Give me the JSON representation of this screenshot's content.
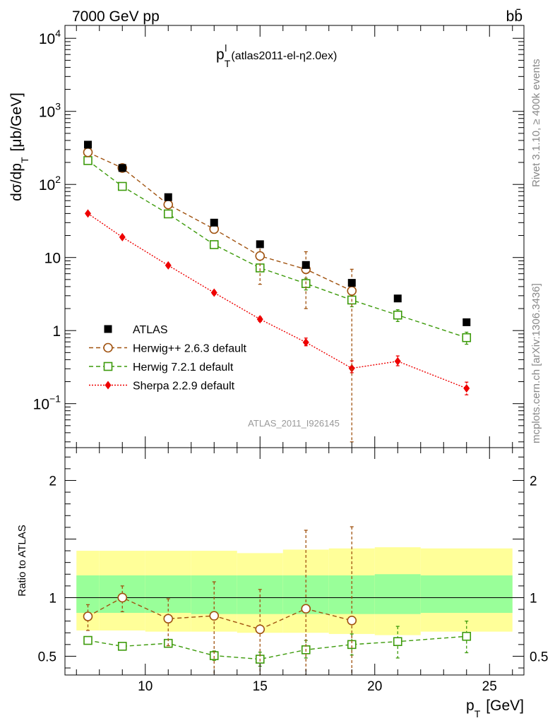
{
  "header": {
    "left_title": "7000 GeV pp",
    "right_title": "bb̄",
    "side_rivet": "Rivet 3.1.10, ≥ 400k events",
    "side_mcplots": "mcplots.cern.ch [arXiv:1306.3436]",
    "watermark": "ATLAS_2011_I926145"
  },
  "colors": {
    "data": "#000000",
    "herwigpp": "#a0520f",
    "herwig7": "#3c9a0a",
    "sherpa": "#ee0000",
    "band_outer": "#ffff99",
    "band_inner": "#99ff99"
  },
  "chart_data": [
    {
      "type": "scatter",
      "title": "p_T^l (atlas2011-el-η2.0ex)",
      "title_main": "p",
      "title_sub": "T",
      "title_sup": "l",
      "title_extra": "(atlas2011-el-η2.0ex)",
      "ylabel": "dσ/dp_T [μb/GeV]",
      "ylabel_main": "dσ/dp",
      "ylabel_sub": "T",
      "ylabel_unit": "[μb/GeV]",
      "yscale": "log",
      "xlim": [
        6.5,
        26.5
      ],
      "ylim": [
        0.025,
        15000
      ],
      "y_tick_labels": [
        {
          "value": 10000,
          "base": "10",
          "exp": "4"
        },
        {
          "value": 1000,
          "base": "10",
          "exp": "3"
        },
        {
          "value": 100,
          "base": "10",
          "exp": "2"
        },
        {
          "value": 10,
          "base": "10",
          "exp": ""
        },
        {
          "value": 1,
          "base": "1",
          "exp": ""
        },
        {
          "value": 0.1,
          "base": "10",
          "exp": "−1"
        }
      ],
      "legend_position": "lower-left",
      "series": [
        {
          "name": "ATLAS",
          "key": "data",
          "marker": "filled-square",
          "line": "none",
          "x": [
            7.5,
            9,
            11,
            13,
            15,
            17,
            19,
            21,
            24
          ],
          "y": [
            350,
            168,
            67,
            30,
            15.2,
            7.9,
            4.5,
            2.75,
            1.3
          ]
        },
        {
          "name": "Herwig++ 2.6.3 default",
          "key": "herwigpp",
          "marker": "open-circle",
          "line": "dashed",
          "x": [
            7.5,
            9,
            11,
            13,
            15,
            17,
            19
          ],
          "y": [
            275,
            168,
            53,
            24.5,
            10.5,
            6.9,
            3.5
          ],
          "err_lo": [
            20,
            15,
            5,
            3,
            6.2,
            4.9,
            3.47
          ],
          "err_hi": [
            20,
            15,
            5,
            3,
            5,
            5.1,
            3.4
          ]
        },
        {
          "name": "Herwig 7.2.1 default",
          "key": "herwig7",
          "marker": "open-square",
          "line": "dashed",
          "x": [
            7.5,
            9,
            11,
            13,
            15,
            17,
            19,
            21,
            24
          ],
          "y": [
            212,
            94,
            39.5,
            15,
            7.2,
            4.4,
            2.62,
            1.63,
            0.8
          ],
          "err_lo": [
            10,
            5,
            2.5,
            1.2,
            0.8,
            0.8,
            0.5,
            0.3,
            0.15
          ],
          "err_hi": [
            10,
            5,
            2.5,
            1.2,
            0.8,
            0.8,
            0.5,
            0.3,
            0.15
          ]
        },
        {
          "name": "Sherpa 2.2.9 default",
          "key": "sherpa",
          "marker": "filled-diamond",
          "line": "dotted",
          "x": [
            7.5,
            9,
            11,
            13,
            15,
            17,
            19,
            21,
            24
          ],
          "y": [
            40,
            19,
            7.8,
            3.3,
            1.43,
            0.69,
            0.305,
            0.38,
            0.162
          ],
          "err_lo": [
            2,
            1,
            0.4,
            0.2,
            0.1,
            0.07,
            0.04,
            0.05,
            0.03
          ],
          "err_hi": [
            2,
            1,
            0.4,
            0.2,
            0.1,
            0.1,
            0.08,
            0.07,
            0.035
          ]
        }
      ]
    },
    {
      "type": "scatter",
      "title": "",
      "ylabel": "Ratio to ATLAS",
      "xlabel": "p_T [GeV]",
      "xlabel_main": "p",
      "xlabel_sub": "T",
      "xlabel_unit": "[GeV]",
      "xlim": [
        6.5,
        26.5
      ],
      "ylim": [
        0.34,
        2.28
      ],
      "x_ticks": [
        10,
        15,
        20,
        25
      ],
      "y_ticks": [
        0.5,
        1,
        2
      ],
      "reference_line": 1,
      "bands": {
        "edges": [
          7,
          8,
          10,
          12,
          14,
          16,
          18,
          20,
          22,
          26
        ],
        "outer_lo": [
          0.72,
          0.72,
          0.71,
          0.71,
          0.7,
          0.7,
          0.69,
          0.68,
          0.71
        ],
        "outer_hi": [
          1.4,
          1.4,
          1.4,
          1.4,
          1.38,
          1.41,
          1.42,
          1.43,
          1.42
        ],
        "inner_lo": [
          0.87,
          0.87,
          0.87,
          0.86,
          0.86,
          0.86,
          0.86,
          0.86,
          0.87
        ],
        "inner_hi": [
          1.19,
          1.19,
          1.19,
          1.19,
          1.19,
          1.19,
          1.19,
          1.2,
          1.19
        ]
      },
      "series": [
        {
          "name": "Herwig++ 2.6.3 default",
          "key": "herwigpp",
          "marker": "open-circle",
          "line": "dashed",
          "x": [
            7.5,
            9,
            11,
            13,
            15,
            17,
            19
          ],
          "y": [
            0.84,
            1.0,
            0.82,
            0.845,
            0.73,
            0.905,
            0.805
          ],
          "err_lo": [
            0.12,
            0.12,
            0.23,
            0.51,
            0.4,
            0.62,
            0.5
          ],
          "err_hi": [
            0.1,
            0.1,
            0.17,
            0.29,
            0.34,
            0.67,
            0.8
          ]
        },
        {
          "name": "Herwig 7.2.1 default",
          "key": "herwig7",
          "marker": "open-square",
          "line": "dashed",
          "x": [
            7.5,
            9,
            11,
            13,
            15,
            17,
            19,
            21,
            24
          ],
          "y": [
            0.635,
            0.585,
            0.61,
            0.505,
            0.475,
            0.555,
            0.6,
            0.625,
            0.67
          ],
          "err_lo": [
            0.02,
            0.02,
            0.03,
            0.04,
            0.06,
            0.07,
            0.09,
            0.14,
            0.14
          ],
          "err_hi": [
            0.02,
            0.02,
            0.03,
            0.04,
            0.06,
            0.08,
            0.09,
            0.13,
            0.13
          ]
        }
      ]
    }
  ]
}
